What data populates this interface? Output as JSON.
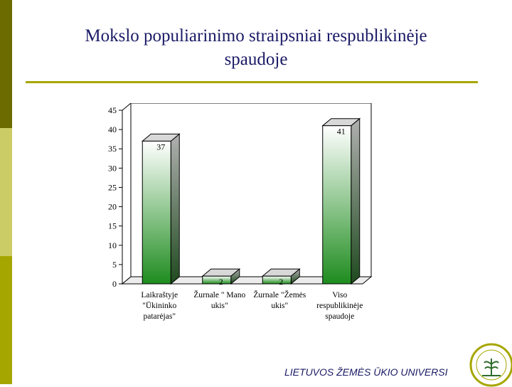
{
  "slide": {
    "title_line1": "Mokslo populiarinimo straipsniai respublikinėje",
    "title_line2": "spaudoje",
    "footer": "LIETUVOS ŽEMĖS ŪKIO UNIVERSI",
    "accent_color": "#a6a600",
    "title_color": "#1a1a66"
  },
  "chart_data": {
    "type": "bar",
    "title": "",
    "xlabel": "",
    "ylabel": "",
    "ylim": [
      0,
      45
    ],
    "yticks": [
      "0",
      "5",
      "10",
      "15",
      "20",
      "25",
      "30",
      "35",
      "40",
      "45"
    ],
    "grid": false,
    "categories": [
      [
        "Laikraštyje",
        "\"Ūkininko",
        "patarėjas\""
      ],
      [
        "Žurnale \" Mano",
        "ukis\""
      ],
      [
        "Žurnale \"Žemės",
        "ukis\""
      ],
      [
        "Viso",
        "respublikinėje",
        "spaudoje"
      ]
    ],
    "values": [
      37,
      2,
      2,
      41
    ],
    "data_labels": [
      "37",
      "2",
      "2",
      "41"
    ],
    "bar_color": "#1e8c1e"
  }
}
